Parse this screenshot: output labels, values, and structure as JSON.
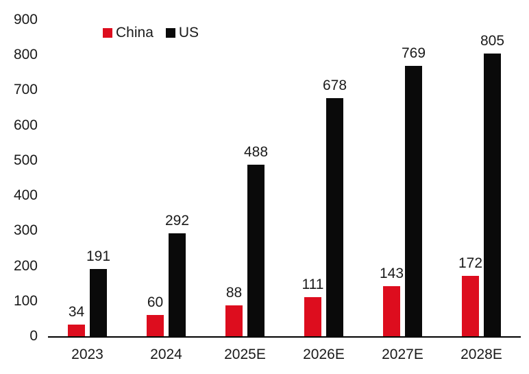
{
  "chart_data": {
    "type": "bar",
    "title": "",
    "xlabel": "",
    "ylabel": "",
    "categories": [
      "2023",
      "2024",
      "2025E",
      "2026E",
      "2027E",
      "2028E"
    ],
    "series": [
      {
        "name": "China",
        "color": "#dd0d1e",
        "values": [
          34,
          60,
          88,
          111,
          143,
          172
        ]
      },
      {
        "name": "US",
        "color": "#0a0a0a",
        "values": [
          191,
          292,
          488,
          678,
          769,
          805
        ]
      }
    ],
    "ylim": [
      0,
      900
    ],
    "yticks": [
      0,
      100,
      200,
      300,
      400,
      500,
      600,
      700,
      800,
      900
    ],
    "grid": false,
    "legend_position": "top-left",
    "data_labels": true,
    "axis_line_color": "#000000",
    "text_color": "#1a1a1a",
    "background_color": "#ffffff"
  }
}
